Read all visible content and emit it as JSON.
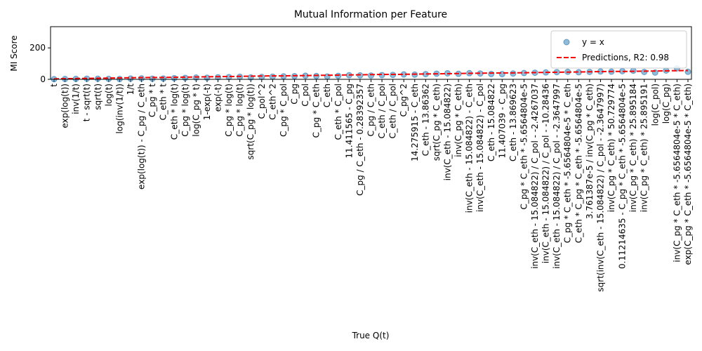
{
  "chart_data": {
    "type": "scatter",
    "title": "Mutual Information per Feature",
    "x_label": "True Q(t)",
    "y_label": "MI Score",
    "categories": [
      "t",
      "exp(log(t))",
      "inv(1/t)",
      "t - sqrt(t)",
      "sqrt(t)",
      "log(t)",
      "log(inv(1/t))",
      "1/t",
      "exp(log(t)) - C_pg / C_eth",
      "C_pg * t",
      "C_eth * t",
      "C_eth * log(t)",
      "C_pg * log(t)",
      "log(C_pg * t)",
      "1-exp(-t)",
      "exp(-t)",
      "C_pg * log(t)",
      "C_pg * log(t)",
      "sqrt(C_pg * log(t))",
      "C_pol^2",
      "C_eth^2",
      "C_pg * C_pol",
      "C_pg",
      "C_pol",
      "C_pg * C_eth",
      "C_eth",
      "C_eth * C_pol",
      "11.411565 - C_pg",
      "C_pg / C_eth - 0.28392357",
      "C_pg / C_eth",
      "C_eth / C_pol",
      "C_eth / C_pol",
      "C_pg^2",
      "14.275915 - C_eth",
      "C_eth - 13.86362",
      "sqrt(C_pg * C_eth)",
      "inv(C_eth - 15.084822)",
      "inv(C_pg * C_eth)",
      "inv(C_eth - 15.084822) - C_eth",
      "inv(C_eth - 15.084822) - C_pol",
      "C_eth - 15.084822",
      "11.407039 - C_pg",
      "C_eth - 13.869623",
      "C_pg * C_eth * -5.6564804e-5",
      "inv(C_eth - 15.084822) / C_pol - -2.4267037",
      "inv(C_eth - 15.084822) / C_pol - -10.28436",
      "inv(C_eth - 15.084822) / C_pol - -2.3647997",
      "C_pg * C_eth * -5.6564804e-5 * C_eth",
      "C_eth * C_pg * C_eth * -5.6564804e-5",
      "3.761387e-5 / inv(C_pg * C_eth)",
      "sqrt(inv(C_eth - 15.084822) / C_pol - -2.3647997)",
      "inv(C_pg * C_eth) * 50.729774",
      "0.11214635 - C_pg * C_eth * -5.6564804e-5",
      "inv(C_pg * C_eth) * 25.895184",
      "inv(C_pg * C_eth) * 25.895191",
      "log(C_pol)",
      "log(C_pg)",
      "inv(C_pg * C_eth * -5.6564804e-5 * C_eth)",
      "exp(C_pg * C_eth * -5.6564804e-5 * C_eth)"
    ],
    "series": [
      {
        "name": "y = x",
        "type": "scatter",
        "color": "#1f77b4",
        "values": [
          1,
          2,
          3,
          4,
          4,
          3,
          2,
          5,
          6,
          4,
          5,
          7,
          9,
          11,
          10,
          13,
          14,
          16,
          12,
          15,
          17,
          19,
          20,
          23,
          21,
          18,
          22,
          26,
          25,
          24,
          27,
          28,
          31,
          30,
          33,
          36,
          38,
          35,
          39,
          37,
          34,
          33,
          37,
          40,
          42,
          44,
          46,
          48,
          45,
          47,
          50,
          49,
          52,
          55,
          47,
          43,
          56,
          70,
          48
        ]
      },
      {
        "name": "Predictions, R2: 0.98",
        "type": "line",
        "color": "#ff0000",
        "values": [
          3,
          4,
          5,
          6,
          7,
          8,
          9,
          10,
          11,
          12,
          12,
          13,
          14,
          15,
          16,
          17,
          18,
          19,
          20,
          21,
          22,
          22,
          23,
          24,
          25,
          26,
          27,
          28,
          29,
          30,
          31,
          31,
          32,
          33,
          34,
          35,
          36,
          37,
          38,
          39,
          40,
          41,
          41,
          42,
          43,
          44,
          45,
          46,
          47,
          48,
          49,
          50,
          50,
          51,
          52,
          53,
          54,
          55,
          56
        ]
      }
    ],
    "ylim": [
      0,
      335
    ],
    "yticks": [
      0,
      200
    ],
    "legend": "upper right"
  }
}
